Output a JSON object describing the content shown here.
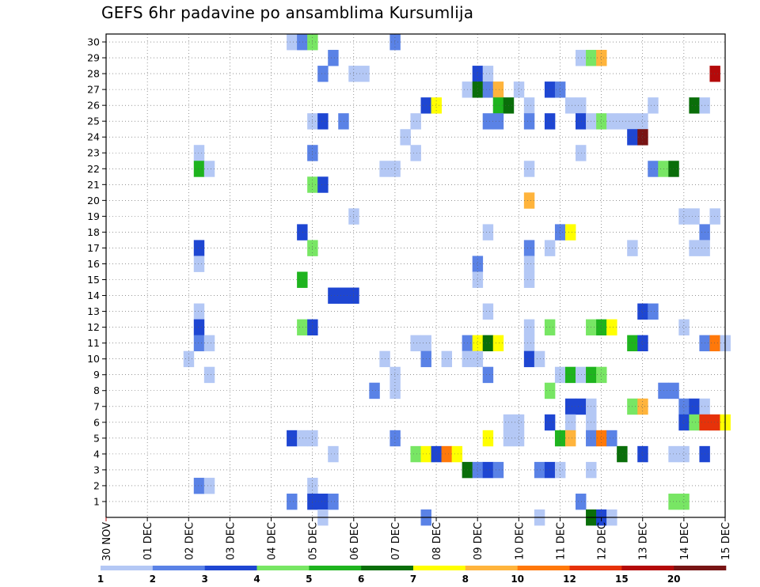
{
  "title": "GEFS 6hr padavine po ansamblima Kursumlija",
  "chart_data": {
    "type": "heatmap",
    "title": "GEFS 6hr padavine po ansamblima Kursumlija",
    "x_tick_labels": [
      "30 NOV",
      "01 DEC",
      "02 DEC",
      "03 DEC",
      "04 DEC",
      "05 DEC",
      "06 DEC",
      "07 DEC",
      "08 DEC",
      "09 DEC",
      "10 DEC",
      "11 DEC",
      "12 DEC",
      "13 DEC",
      "14 DEC",
      "15 DEC"
    ],
    "y_tick_labels": [
      "1",
      "2",
      "3",
      "4",
      "5",
      "6",
      "7",
      "8",
      "9",
      "10",
      "11",
      "12",
      "13",
      "14",
      "15",
      "16",
      "17",
      "18",
      "19",
      "20",
      "21",
      "22",
      "23",
      "24",
      "25",
      "26",
      "27",
      "28",
      "29",
      "30"
    ],
    "xlim_days": [
      0,
      15
    ],
    "ylim_members": [
      0,
      30
    ],
    "grid": true,
    "legend_placement": "bottom",
    "legend": {
      "labels": [
        "1",
        "2",
        "3",
        "4",
        "5",
        "6",
        "7",
        "8",
        "10",
        "12",
        "15",
        "20"
      ],
      "colors": [
        "#b4c8f5",
        "#5a82e6",
        "#1e46d2",
        "#78e664",
        "#1eb41e",
        "#0a6e0a",
        "#ffff00",
        "#ffb43c",
        "#ff780a",
        "#e6320a",
        "#b40a0a",
        "#781414"
      ]
    },
    "cells_note": "[day_offset, ensemble_member, color_class]; day_offset in days from 30 NOV 00z, 6-hour steps; color_class 0..11 maps to legend colors",
    "cells": [
      [
        4.5,
        30,
        0
      ],
      [
        4.75,
        30,
        1
      ],
      [
        5.0,
        30,
        3
      ],
      [
        7.0,
        30,
        1
      ],
      [
        5.5,
        29,
        1
      ],
      [
        11.5,
        29,
        0
      ],
      [
        11.75,
        29,
        3
      ],
      [
        12.0,
        29,
        7
      ],
      [
        5.25,
        28,
        1
      ],
      [
        6.0,
        28,
        0
      ],
      [
        6.25,
        28,
        0
      ],
      [
        9.0,
        28,
        2
      ],
      [
        9.25,
        28,
        0
      ],
      [
        14.75,
        28,
        10
      ],
      [
        8.75,
        27,
        0
      ],
      [
        9.0,
        27,
        5
      ],
      [
        9.25,
        27,
        1
      ],
      [
        9.5,
        27,
        7
      ],
      [
        10.0,
        27,
        0
      ],
      [
        10.75,
        27,
        2
      ],
      [
        11.0,
        27,
        1
      ],
      [
        7.75,
        26,
        2
      ],
      [
        8.0,
        26,
        6
      ],
      [
        9.5,
        26,
        4
      ],
      [
        9.75,
        26,
        5
      ],
      [
        10.25,
        26,
        0
      ],
      [
        11.25,
        26,
        0
      ],
      [
        11.5,
        26,
        0
      ],
      [
        13.25,
        26,
        0
      ],
      [
        14.25,
        26,
        5
      ],
      [
        14.5,
        26,
        0
      ],
      [
        5.0,
        25,
        0
      ],
      [
        5.25,
        25,
        2
      ],
      [
        5.75,
        25,
        1
      ],
      [
        7.5,
        25,
        0
      ],
      [
        9.25,
        25,
        1
      ],
      [
        9.5,
        25,
        1
      ],
      [
        10.25,
        25,
        1
      ],
      [
        10.75,
        25,
        2
      ],
      [
        11.5,
        25,
        2
      ],
      [
        11.75,
        25,
        0
      ],
      [
        12.0,
        25,
        3
      ],
      [
        12.25,
        25,
        0
      ],
      [
        12.5,
        25,
        0
      ],
      [
        12.75,
        25,
        0
      ],
      [
        13.0,
        25,
        0
      ],
      [
        7.25,
        24,
        0
      ],
      [
        12.75,
        24,
        2
      ],
      [
        13.0,
        24,
        11
      ],
      [
        2.25,
        23,
        0
      ],
      [
        5.0,
        23,
        1
      ],
      [
        7.5,
        23,
        0
      ],
      [
        11.5,
        23,
        0
      ],
      [
        2.25,
        22,
        4
      ],
      [
        2.5,
        22,
        0
      ],
      [
        6.75,
        22,
        0
      ],
      [
        7.0,
        22,
        0
      ],
      [
        10.25,
        22,
        0
      ],
      [
        13.25,
        22,
        1
      ],
      [
        13.5,
        22,
        3
      ],
      [
        13.75,
        22,
        5
      ],
      [
        5.0,
        21,
        3
      ],
      [
        5.25,
        21,
        2
      ],
      [
        10.25,
        20,
        7
      ],
      [
        6.0,
        19,
        0
      ],
      [
        14.0,
        19,
        0
      ],
      [
        14.25,
        19,
        0
      ],
      [
        14.75,
        19,
        0
      ],
      [
        4.75,
        18,
        2
      ],
      [
        9.25,
        18,
        0
      ],
      [
        11.0,
        18,
        1
      ],
      [
        11.25,
        18,
        6
      ],
      [
        14.5,
        18,
        1
      ],
      [
        2.25,
        17,
        2
      ],
      [
        5.0,
        17,
        3
      ],
      [
        10.25,
        17,
        1
      ],
      [
        10.75,
        17,
        0
      ],
      [
        12.75,
        17,
        0
      ],
      [
        14.25,
        17,
        0
      ],
      [
        14.5,
        17,
        0
      ],
      [
        2.25,
        16,
        0
      ],
      [
        9.0,
        16,
        1
      ],
      [
        10.25,
        16,
        0
      ],
      [
        4.75,
        15,
        4
      ],
      [
        9.0,
        15,
        0
      ],
      [
        10.25,
        15,
        0
      ],
      [
        5.5,
        14,
        2
      ],
      [
        5.75,
        14,
        2
      ],
      [
        6.0,
        14,
        2
      ],
      [
        2.25,
        13,
        0
      ],
      [
        9.25,
        13,
        0
      ],
      [
        13.0,
        13,
        2
      ],
      [
        13.25,
        13,
        1
      ],
      [
        2.25,
        12,
        2
      ],
      [
        4.75,
        12,
        3
      ],
      [
        5.0,
        12,
        2
      ],
      [
        10.25,
        12,
        0
      ],
      [
        10.75,
        12,
        3
      ],
      [
        11.75,
        12,
        3
      ],
      [
        12.0,
        12,
        4
      ],
      [
        12.25,
        12,
        6
      ],
      [
        14.0,
        12,
        0
      ],
      [
        2.25,
        11,
        1
      ],
      [
        2.5,
        11,
        0
      ],
      [
        7.5,
        11,
        0
      ],
      [
        7.75,
        11,
        0
      ],
      [
        8.75,
        11,
        1
      ],
      [
        9.0,
        11,
        6
      ],
      [
        9.25,
        11,
        5
      ],
      [
        9.5,
        11,
        6
      ],
      [
        10.25,
        11,
        0
      ],
      [
        12.75,
        11,
        4
      ],
      [
        13.0,
        11,
        2
      ],
      [
        14.5,
        11,
        1
      ],
      [
        14.75,
        11,
        8
      ],
      [
        15.0,
        11,
        0
      ],
      [
        2.0,
        10,
        0
      ],
      [
        6.75,
        10,
        0
      ],
      [
        7.75,
        10,
        1
      ],
      [
        8.25,
        10,
        0
      ],
      [
        8.75,
        10,
        0
      ],
      [
        9.0,
        10,
        0
      ],
      [
        10.25,
        10,
        2
      ],
      [
        10.5,
        10,
        0
      ],
      [
        2.5,
        9,
        0
      ],
      [
        7.0,
        9,
        0
      ],
      [
        9.25,
        9,
        1
      ],
      [
        11.0,
        9,
        0
      ],
      [
        11.25,
        9,
        4
      ],
      [
        11.5,
        9,
        0
      ],
      [
        11.75,
        9,
        4
      ],
      [
        12.0,
        9,
        3
      ],
      [
        6.5,
        8,
        1
      ],
      [
        7.0,
        8,
        0
      ],
      [
        10.75,
        8,
        3
      ],
      [
        13.5,
        8,
        1
      ],
      [
        13.75,
        8,
        1
      ],
      [
        11.25,
        7,
        2
      ],
      [
        11.5,
        7,
        2
      ],
      [
        11.75,
        7,
        0
      ],
      [
        12.75,
        7,
        3
      ],
      [
        13.0,
        7,
        7
      ],
      [
        14.0,
        7,
        1
      ],
      [
        14.25,
        7,
        2
      ],
      [
        14.5,
        7,
        0
      ],
      [
        9.75,
        6,
        0
      ],
      [
        10.0,
        6,
        0
      ],
      [
        10.75,
        6,
        2
      ],
      [
        11.25,
        6,
        0
      ],
      [
        11.75,
        6,
        0
      ],
      [
        14.0,
        6,
        2
      ],
      [
        14.25,
        6,
        3
      ],
      [
        14.5,
        6,
        9
      ],
      [
        14.75,
        6,
        9
      ],
      [
        15.0,
        6,
        6
      ],
      [
        4.5,
        5,
        2
      ],
      [
        4.75,
        5,
        0
      ],
      [
        5.0,
        5,
        0
      ],
      [
        7.0,
        5,
        1
      ],
      [
        9.25,
        5,
        6
      ],
      [
        9.75,
        5,
        0
      ],
      [
        10.0,
        5,
        0
      ],
      [
        11.0,
        5,
        4
      ],
      [
        11.25,
        5,
        7
      ],
      [
        11.75,
        5,
        1
      ],
      [
        12.0,
        5,
        8
      ],
      [
        12.25,
        5,
        1
      ],
      [
        5.5,
        4,
        0
      ],
      [
        7.5,
        4,
        3
      ],
      [
        7.75,
        4,
        6
      ],
      [
        8.0,
        4,
        2
      ],
      [
        8.25,
        4,
        8
      ],
      [
        8.5,
        4,
        6
      ],
      [
        12.5,
        4,
        5
      ],
      [
        13.0,
        4,
        2
      ],
      [
        13.75,
        4,
        0
      ],
      [
        14.0,
        4,
        0
      ],
      [
        14.5,
        4,
        2
      ],
      [
        8.75,
        3,
        5
      ],
      [
        9.0,
        3,
        1
      ],
      [
        9.25,
        3,
        2
      ],
      [
        9.5,
        3,
        1
      ],
      [
        10.5,
        3,
        1
      ],
      [
        10.75,
        3,
        2
      ],
      [
        11.0,
        3,
        0
      ],
      [
        11.75,
        3,
        0
      ],
      [
        2.25,
        2,
        1
      ],
      [
        2.5,
        2,
        0
      ],
      [
        5.0,
        2,
        0
      ],
      [
        4.5,
        1,
        1
      ],
      [
        5.0,
        1,
        2
      ],
      [
        5.25,
        1,
        2
      ],
      [
        5.5,
        1,
        1
      ],
      [
        11.5,
        1,
        1
      ],
      [
        13.75,
        1,
        3
      ],
      [
        14.0,
        1,
        3
      ],
      [
        5.25,
        0,
        0
      ],
      [
        7.75,
        0,
        1
      ],
      [
        10.5,
        0,
        0
      ],
      [
        11.75,
        0,
        5
      ],
      [
        12.0,
        0,
        2
      ],
      [
        12.25,
        0,
        0
      ]
    ]
  }
}
